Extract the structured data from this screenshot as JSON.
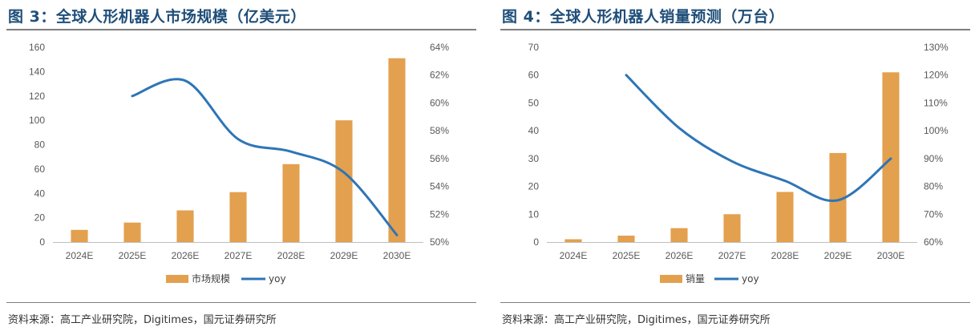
{
  "chart_data": [
    {
      "type": "bar",
      "title": "图 3：全球人形机器人市场规模（亿美元）",
      "categories": [
        "2024E",
        "2025E",
        "2026E",
        "2027E",
        "2028E",
        "2029E",
        "2030E"
      ],
      "series": [
        {
          "name": "市场规模",
          "type": "bar",
          "axis": "left",
          "color": "#e3a04e",
          "values": [
            10,
            16,
            26,
            41,
            64,
            100,
            151
          ]
        },
        {
          "name": "yoy",
          "type": "line",
          "axis": "right",
          "color": "#2e75b6",
          "values": [
            null,
            60.5,
            61.6,
            57.4,
            56.5,
            55.0,
            50.5
          ]
        }
      ],
      "ylim": [
        0,
        160
      ],
      "yticks": [
        "0",
        "20",
        "40",
        "60",
        "80",
        "100",
        "120",
        "140",
        "160"
      ],
      "y2lim": [
        50,
        64
      ],
      "y2ticks": [
        "50%",
        "52%",
        "54%",
        "56%",
        "58%",
        "60%",
        "62%",
        "64%"
      ],
      "legend": "bottom",
      "source": "资料来源：高工产业研究院，Digitimes，国元证券研究所"
    },
    {
      "type": "bar",
      "title": "图 4：全球人形机器人销量预测（万台）",
      "categories": [
        "2024E",
        "2025E",
        "2026E",
        "2027E",
        "2028E",
        "2029E",
        "2030E"
      ],
      "series": [
        {
          "name": "销量",
          "type": "bar",
          "axis": "left",
          "color": "#e3a04e",
          "values": [
            1,
            2.3,
            5,
            10,
            18,
            32,
            61
          ]
        },
        {
          "name": "yoy",
          "type": "line",
          "axis": "right",
          "color": "#2e75b6",
          "values": [
            null,
            120,
            101,
            89,
            82,
            75,
            90
          ]
        }
      ],
      "ylim": [
        0,
        70
      ],
      "yticks": [
        "0",
        "10",
        "20",
        "30",
        "40",
        "50",
        "60",
        "70"
      ],
      "y2lim": [
        60,
        130
      ],
      "y2ticks": [
        "60%",
        "70%",
        "80%",
        "90%",
        "100%",
        "110%",
        "120%",
        "130%"
      ],
      "legend": "bottom",
      "source": "资料来源：高工产业研究院，Digitimes，国元证券研究所"
    }
  ]
}
